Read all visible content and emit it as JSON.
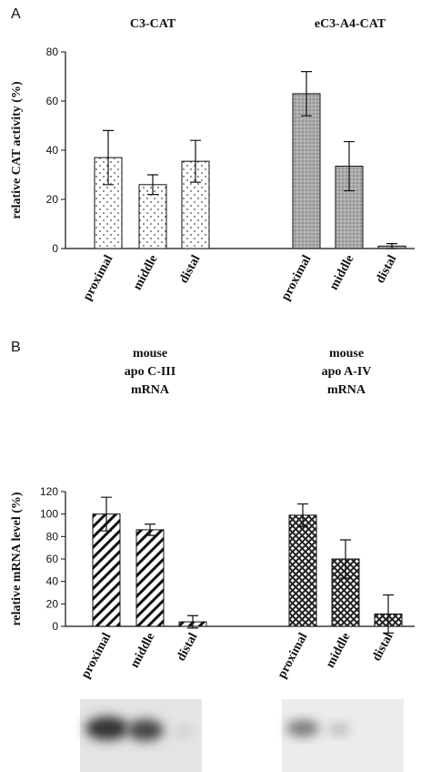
{
  "chart_data": [
    {
      "type": "bar",
      "panel": "A",
      "ylabel": "relative CAT activity (%)",
      "categories": [
        "proximal",
        "middle",
        "distal"
      ],
      "ylim": [
        0,
        80
      ],
      "yticks": [
        0,
        20,
        40,
        60,
        80
      ],
      "series": [
        {
          "title_lines": [
            "C3-CAT"
          ],
          "pattern": "dots",
          "values": [
            37,
            26,
            35.5
          ],
          "errors": [
            11,
            4,
            8.5
          ]
        },
        {
          "title_lines": [
            "eC3-A4-CAT"
          ],
          "pattern": "gray",
          "values": [
            63,
            33.5,
            1
          ],
          "errors": [
            9,
            10,
            1
          ]
        }
      ]
    },
    {
      "type": "bar",
      "panel": "B",
      "ylabel": "relative mRNA level (%)",
      "categories": [
        "proximal",
        "middle",
        "distal"
      ],
      "ylim": [
        0,
        120
      ],
      "yticks": [
        0,
        20,
        40,
        60,
        80,
        100,
        120
      ],
      "series": [
        {
          "title_lines": [
            "mouse",
            "apo C-III",
            "mRNA"
          ],
          "pattern": "hatch",
          "values": [
            100,
            86,
            4
          ],
          "errors": [
            15,
            5,
            5.5
          ]
        },
        {
          "title_lines": [
            "mouse",
            "apo A-IV",
            "mRNA"
          ],
          "pattern": "cross",
          "values": [
            99,
            60,
            11
          ],
          "errors": [
            10,
            17,
            17
          ]
        }
      ]
    }
  ]
}
